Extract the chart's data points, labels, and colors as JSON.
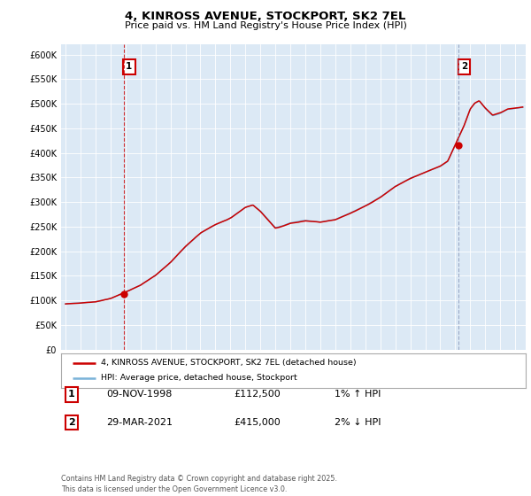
{
  "title": "4, KINROSS AVENUE, STOCKPORT, SK2 7EL",
  "subtitle": "Price paid vs. HM Land Registry's House Price Index (HPI)",
  "bg_color": "#dce9f5",
  "fig_bg_color": "#ffffff",
  "hpi_line_color": "#7ab3d9",
  "price_line_color": "#cc0000",
  "marker_color": "#cc0000",
  "vline1_color": "#cc0000",
  "vline2_color": "#8899bb",
  "ylim": [
    0,
    620000
  ],
  "x_start_year": 1995,
  "x_end_year": 2025,
  "sale1_year": 1998.87,
  "sale1_price": 112500,
  "sale1_label": "1",
  "sale2_year": 2021.24,
  "sale2_price": 415000,
  "sale2_label": "2",
  "legend_line1": "4, KINROSS AVENUE, STOCKPORT, SK2 7EL (detached house)",
  "legend_line2": "HPI: Average price, detached house, Stockport",
  "table_row1_num": "1",
  "table_row1_date": "09-NOV-1998",
  "table_row1_price": "£112,500",
  "table_row1_hpi": "1% ↑ HPI",
  "table_row2_num": "2",
  "table_row2_date": "29-MAR-2021",
  "table_row2_price": "£415,000",
  "table_row2_hpi": "2% ↓ HPI",
  "footer": "Contains HM Land Registry data © Crown copyright and database right 2025.\nThis data is licensed under the Open Government Licence v3.0."
}
